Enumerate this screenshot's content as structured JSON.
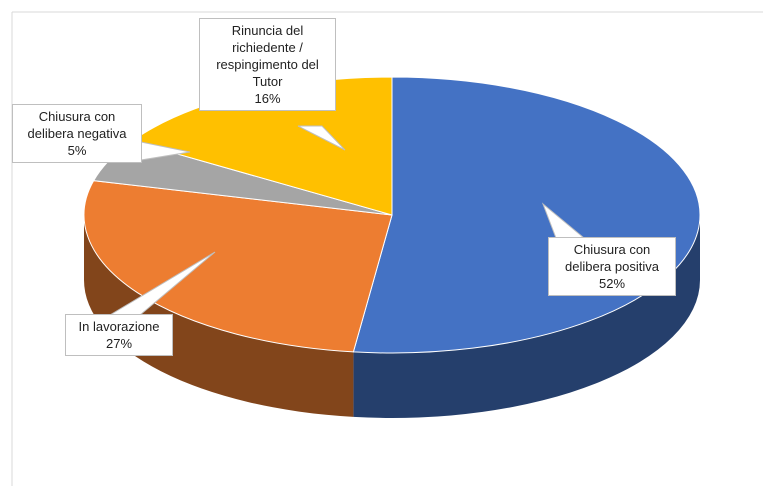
{
  "chart_data": {
    "type": "pie",
    "categories": [
      "Chiusura con delibera positiva",
      "In lavorazione",
      "Chiusura con delibera negativa",
      "Rinuncia del richiedente / respingimento del Tutor"
    ],
    "values": [
      52,
      27,
      5,
      16
    ],
    "value_labels": [
      "52%",
      "27%",
      "5%",
      "16%"
    ],
    "colors": [
      "#4472c4",
      "#ed7d31",
      "#a5a5a5",
      "#ffc000"
    ]
  }
}
